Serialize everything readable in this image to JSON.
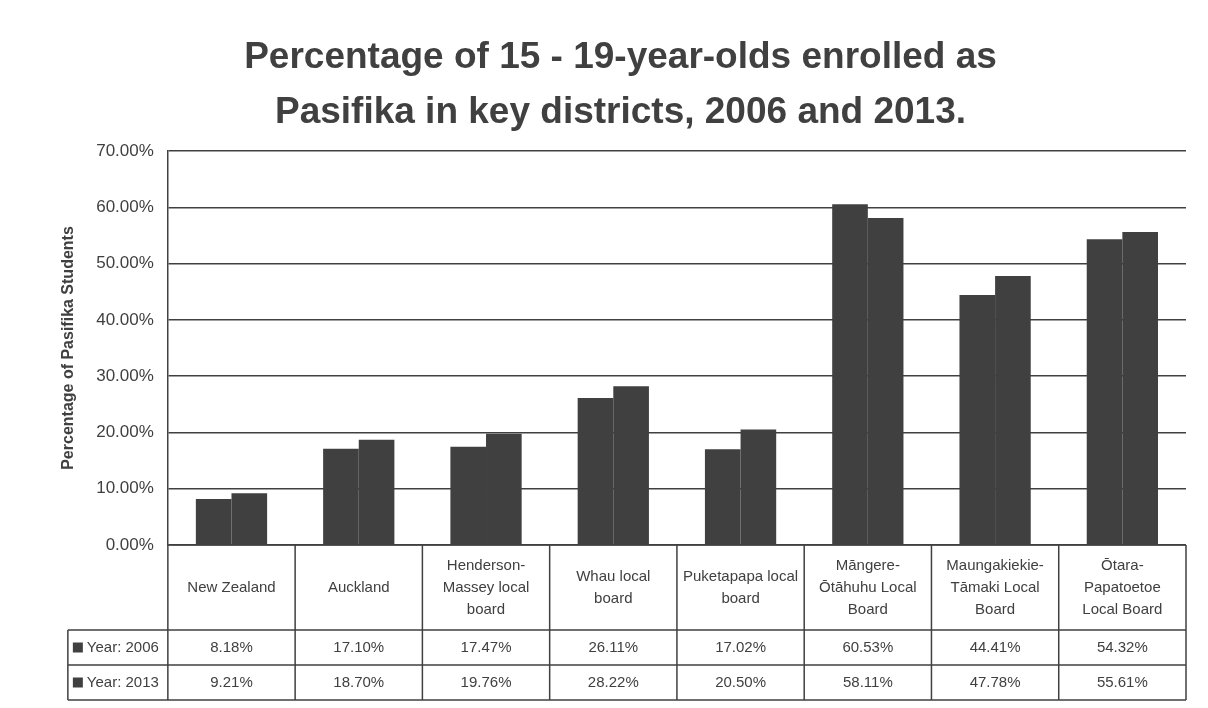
{
  "chart_data": {
    "type": "bar",
    "title": "Percentage of 15 - 19-year-olds enrolled as Pasifika in key districts, 2006 and 2013.",
    "ylabel": "Percentage of Pasifika Students",
    "categories": [
      "New Zealand",
      "Auckland",
      "Henderson-Massey local board",
      "Whau local board",
      "Puketapapa local board",
      "Māngere-Ōtāhuhu Local Board",
      "Maungakiekie-Tāmaki Local Board",
      "Ōtara-Papatoetoe Local Board"
    ],
    "series": [
      {
        "name": "Year: 2006",
        "color": "#404040",
        "values": [
          8.18,
          17.1,
          17.47,
          26.11,
          17.02,
          60.53,
          44.41,
          54.32
        ],
        "value_labels": [
          "8.18%",
          "17.10%",
          "17.47%",
          "26.11%",
          "17.02%",
          "60.53%",
          "44.41%",
          "54.32%"
        ]
      },
      {
        "name": "Year: 2013",
        "color": "#404040",
        "values": [
          9.21,
          18.7,
          19.76,
          28.22,
          20.5,
          58.11,
          47.78,
          55.61
        ],
        "value_labels": [
          "9.21%",
          "18.70%",
          "19.76%",
          "28.22%",
          "20.50%",
          "58.11%",
          "47.78%",
          "55.61%"
        ]
      }
    ],
    "ylim": [
      0,
      70
    ],
    "yticks": [
      {
        "value": 0,
        "label": "0.00%"
      },
      {
        "value": 10,
        "label": "10.00%"
      },
      {
        "value": 20,
        "label": "20.00%"
      },
      {
        "value": 30,
        "label": "30.00%"
      },
      {
        "value": 40,
        "label": "40.00%"
      },
      {
        "value": 50,
        "label": "50.00%"
      },
      {
        "value": 60,
        "label": "60.00%"
      },
      {
        "value": 70,
        "label": "70.00%"
      }
    ],
    "grid": "y",
    "legend": "bottom"
  }
}
